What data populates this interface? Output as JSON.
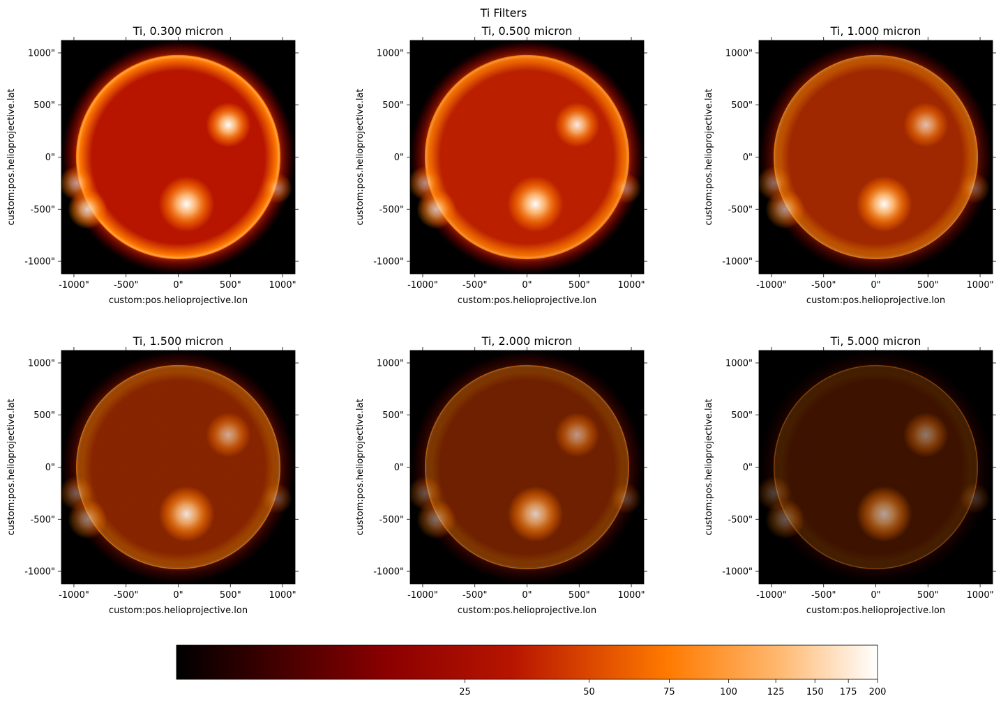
{
  "figure": {
    "title": "Ti Filters"
  },
  "chart_data": {
    "type": "heatmap",
    "panels": [
      {
        "title": "Ti, 0.300 micron",
        "relative_brightness": 1.0
      },
      {
        "title": "Ti, 0.500 micron",
        "relative_brightness": 0.85
      },
      {
        "title": "Ti, 1.000 micron",
        "relative_brightness": 0.55
      },
      {
        "title": "Ti, 1.500 micron",
        "relative_brightness": 0.42
      },
      {
        "title": "Ti, 2.000 micron",
        "relative_brightness": 0.32
      },
      {
        "title": "Ti, 5.000 micron",
        "relative_brightness": 0.16
      }
    ],
    "xlabel": "custom:pos.helioprojective.lon",
    "ylabel": "custom:pos.helioprojective.lat",
    "xlim": [
      -1120,
      1120
    ],
    "ylim": [
      -1120,
      1120
    ],
    "xticks": [
      {
        "value": -1000,
        "label": "-1000\""
      },
      {
        "value": -500,
        "label": "-500\""
      },
      {
        "value": 0,
        "label": "0\""
      },
      {
        "value": 500,
        "label": "500\""
      },
      {
        "value": 1000,
        "label": "1000\""
      }
    ],
    "yticks": [
      {
        "value": 1000,
        "label": "1000\""
      },
      {
        "value": 500,
        "label": "500\""
      },
      {
        "value": 0,
        "label": "0\""
      },
      {
        "value": -500,
        "label": "-500\""
      },
      {
        "value": -1000,
        "label": "-1000\""
      }
    ],
    "features": {
      "solar_radius": 975,
      "active_regions": [
        {
          "lon": 80,
          "lat": -450,
          "strength": 1.0
        },
        {
          "lon": 480,
          "lat": 310,
          "strength": 0.7
        },
        {
          "lon": -870,
          "lat": -500,
          "strength": 0.55
        },
        {
          "lon": -980,
          "lat": -250,
          "strength": 0.4
        },
        {
          "lon": 950,
          "lat": -300,
          "strength": 0.3
        }
      ]
    },
    "colormap": {
      "name": "gist_heat",
      "scale": "log",
      "range": [
        0,
        200
      ],
      "stops": [
        "#000000",
        "#8b0000",
        "#b71500",
        "#ff7a00",
        "#ffb870",
        "#ffffff"
      ],
      "ticks": [
        {
          "value": 25,
          "label": "25"
        },
        {
          "value": 50,
          "label": "50"
        },
        {
          "value": 75,
          "label": "75"
        },
        {
          "value": 100,
          "label": "100"
        },
        {
          "value": 125,
          "label": "125"
        },
        {
          "value": 150,
          "label": "150"
        },
        {
          "value": 175,
          "label": "175"
        },
        {
          "value": 200,
          "label": "200"
        }
      ]
    }
  }
}
